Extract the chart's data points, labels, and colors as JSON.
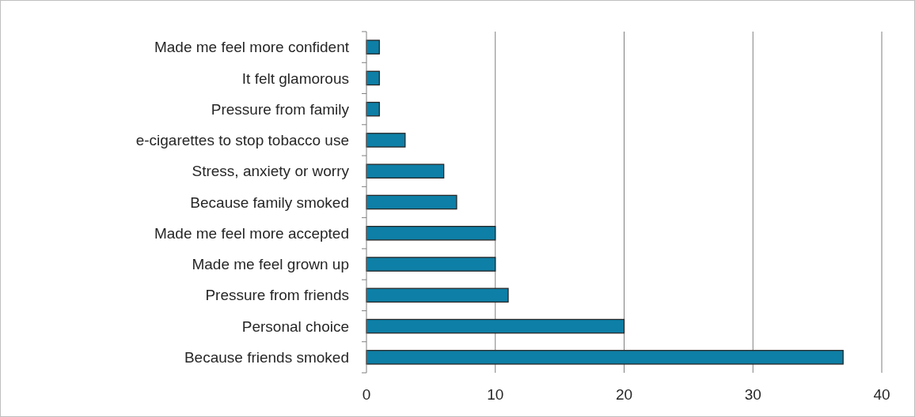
{
  "chart_data": {
    "type": "bar",
    "orientation": "horizontal",
    "categories": [
      "Made me feel more confident",
      "It felt glamorous",
      "Pressure from family",
      "e-cigarettes to stop tobacco use",
      "Stress, anxiety or worry",
      "Because family smoked",
      "Made me feel more accepted",
      "Made me feel grown up",
      "Pressure from friends",
      "Personal choice",
      "Because friends smoked"
    ],
    "values": [
      1,
      1,
      1,
      3,
      6,
      7,
      10,
      10,
      11,
      20,
      37
    ],
    "color": "#0e7fa6",
    "xlim": [
      0,
      40
    ],
    "xticks": [
      0,
      10,
      20,
      30,
      40
    ],
    "grid": "x"
  }
}
